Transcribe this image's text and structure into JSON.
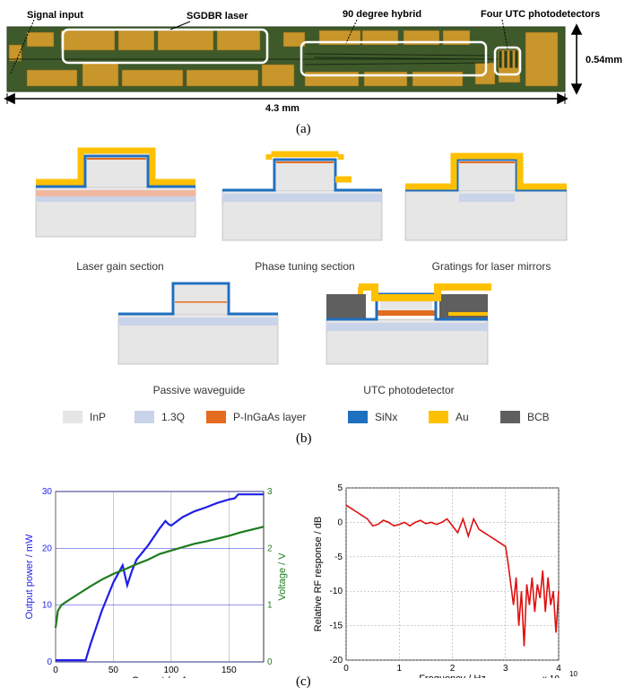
{
  "panel_a": {
    "labels": {
      "signal_input": "Signal input",
      "sgdbr": "SGDBR laser",
      "hybrid": "90 degree hybrid",
      "utc": "Four UTC photodetectors",
      "height": "0.54mm",
      "length": "4.3 mm"
    },
    "caption": "(a)"
  },
  "panel_b": {
    "sections": [
      "Laser gain section",
      "Phase tuning section",
      "Gratings for laser mirrors",
      "Passive waveguide",
      "UTC photodetector"
    ],
    "legend": [
      {
        "label": "InP",
        "color": "#e6e6e6"
      },
      {
        "label": "1.3Q",
        "color": "#c9d3ea"
      },
      {
        "label": "P-InGaAs layer",
        "color": "#e46c1e"
      },
      {
        "label": "SiNx",
        "color": "#1f6fbf"
      },
      {
        "label": "Au",
        "color": "#ffc000"
      },
      {
        "label": "BCB",
        "color": "#5f5f5f"
      }
    ],
    "caption": "(b)"
  },
  "panel_c": {
    "caption": "(c)",
    "liv_xlabel": "Current / mA",
    "liv_ylabel_left": "Output power / mW",
    "liv_ylabel_right": "Voltage / V",
    "rf_xlabel": "Frequency / Hz",
    "rf_ylabel": "Relative RF response / dB",
    "rf_exponent": "x 10",
    "rf_exponent_power": "10"
  },
  "chart_data": [
    {
      "type": "line",
      "xlabel": "Current / mA",
      "ylabel": "Output power / mW",
      "y2label": "Voltage / V",
      "xlim": [
        0,
        180
      ],
      "ylim": [
        0,
        30
      ],
      "y2lim": [
        0,
        3
      ],
      "xticks": [
        "0",
        "50",
        "100",
        "150"
      ],
      "yticks": [
        "0",
        "10",
        "20",
        "30"
      ],
      "y2ticks": [
        "0",
        "1",
        "2",
        "3"
      ],
      "grid": true,
      "series": [
        {
          "axis": "left",
          "color": "#1f1fe6",
          "x": [
            0,
            10,
            20,
            26,
            30,
            40,
            50,
            58,
            62,
            66,
            70,
            80,
            90,
            95,
            98,
            100,
            110,
            120,
            130,
            140,
            150,
            155,
            158,
            165,
            175,
            180
          ],
          "y": [
            0.3,
            0.3,
            0.3,
            0.3,
            3,
            9,
            14,
            17,
            13.5,
            16,
            18,
            20.5,
            23.5,
            24.8,
            24.2,
            24,
            25.5,
            26.5,
            27.2,
            28,
            28.6,
            28.8,
            29.5,
            29.5,
            29.5,
            29.5
          ]
        },
        {
          "axis": "right",
          "color": "#1e7b1e",
          "x": [
            0,
            2,
            5,
            10,
            20,
            30,
            40,
            50,
            60,
            70,
            80,
            90,
            100,
            110,
            120,
            130,
            140,
            150,
            160,
            170,
            180
          ],
          "y": [
            0.6,
            0.9,
            1.0,
            1.07,
            1.2,
            1.33,
            1.45,
            1.55,
            1.63,
            1.72,
            1.8,
            1.9,
            1.96,
            2.02,
            2.08,
            2.12,
            2.17,
            2.22,
            2.28,
            2.33,
            2.38
          ]
        }
      ]
    },
    {
      "type": "line",
      "xlabel": "Frequency / Hz",
      "ylabel": "Relative RF response / dB",
      "xlim": [
        0,
        4
      ],
      "ylim": [
        -20,
        5
      ],
      "xticks": [
        "0",
        "1",
        "2",
        "3",
        "4"
      ],
      "yticks": [
        "5",
        "0",
        "-5",
        "-10",
        "-15",
        "-20"
      ],
      "x_multiplier": "x 10^10",
      "grid": true,
      "series": [
        {
          "color": "#e01010",
          "x": [
            0,
            0.1,
            0.2,
            0.3,
            0.4,
            0.5,
            0.6,
            0.7,
            0.8,
            0.9,
            1.0,
            1.1,
            1.2,
            1.3,
            1.4,
            1.5,
            1.6,
            1.7,
            1.8,
            1.9,
            2.0,
            2.1,
            2.2,
            2.3,
            2.4,
            2.5,
            2.6,
            2.7,
            2.8,
            2.9,
            3.0,
            3.05,
            3.1,
            3.15,
            3.2,
            3.25,
            3.3,
            3.35,
            3.4,
            3.45,
            3.5,
            3.55,
            3.6,
            3.65,
            3.7,
            3.75,
            3.8,
            3.85,
            3.9,
            3.95,
            4.0
          ],
          "y": [
            2.5,
            2,
            1.5,
            1,
            0.5,
            -0.5,
            -0.3,
            0.3,
            0,
            -0.5,
            -0.3,
            0,
            -0.5,
            0,
            0.3,
            -0.2,
            0,
            -0.3,
            0,
            0.5,
            -0.5,
            -1.5,
            0.5,
            -2,
            0.5,
            -1,
            -1.5,
            -2,
            -2.5,
            -3,
            -3.5,
            -6,
            -9,
            -12,
            -8,
            -15,
            -10,
            -18,
            -9,
            -12,
            -8,
            -13,
            -9,
            -11,
            -7,
            -13,
            -8,
            -12,
            -10,
            -16,
            -10
          ]
        }
      ]
    }
  ]
}
